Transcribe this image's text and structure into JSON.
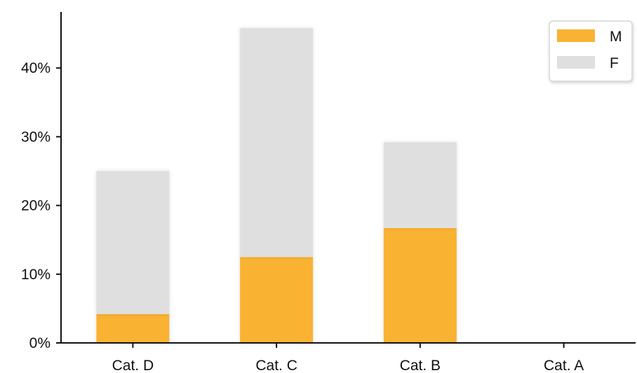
{
  "chart_data": {
    "type": "bar",
    "stacked": true,
    "categories": [
      "Cat. D",
      "Cat. C",
      "Cat. B",
      "Cat. A"
    ],
    "series": [
      {
        "name": "M",
        "values": [
          4.2,
          12.5,
          16.7,
          0
        ],
        "color": "#F9B233"
      },
      {
        "name": "F",
        "values": [
          20.8,
          33.3,
          12.5,
          0
        ],
        "color": "#DFDFDF"
      }
    ],
    "y_tick_values": [
      0,
      10,
      20,
      30,
      40
    ],
    "y_tick_labels": [
      "0%",
      "10%",
      "20%",
      "30%",
      "40%"
    ],
    "ylim": [
      0,
      48
    ],
    "grid": false,
    "legend_position": "top-right",
    "title": "",
    "xlabel": "",
    "ylabel": ""
  }
}
